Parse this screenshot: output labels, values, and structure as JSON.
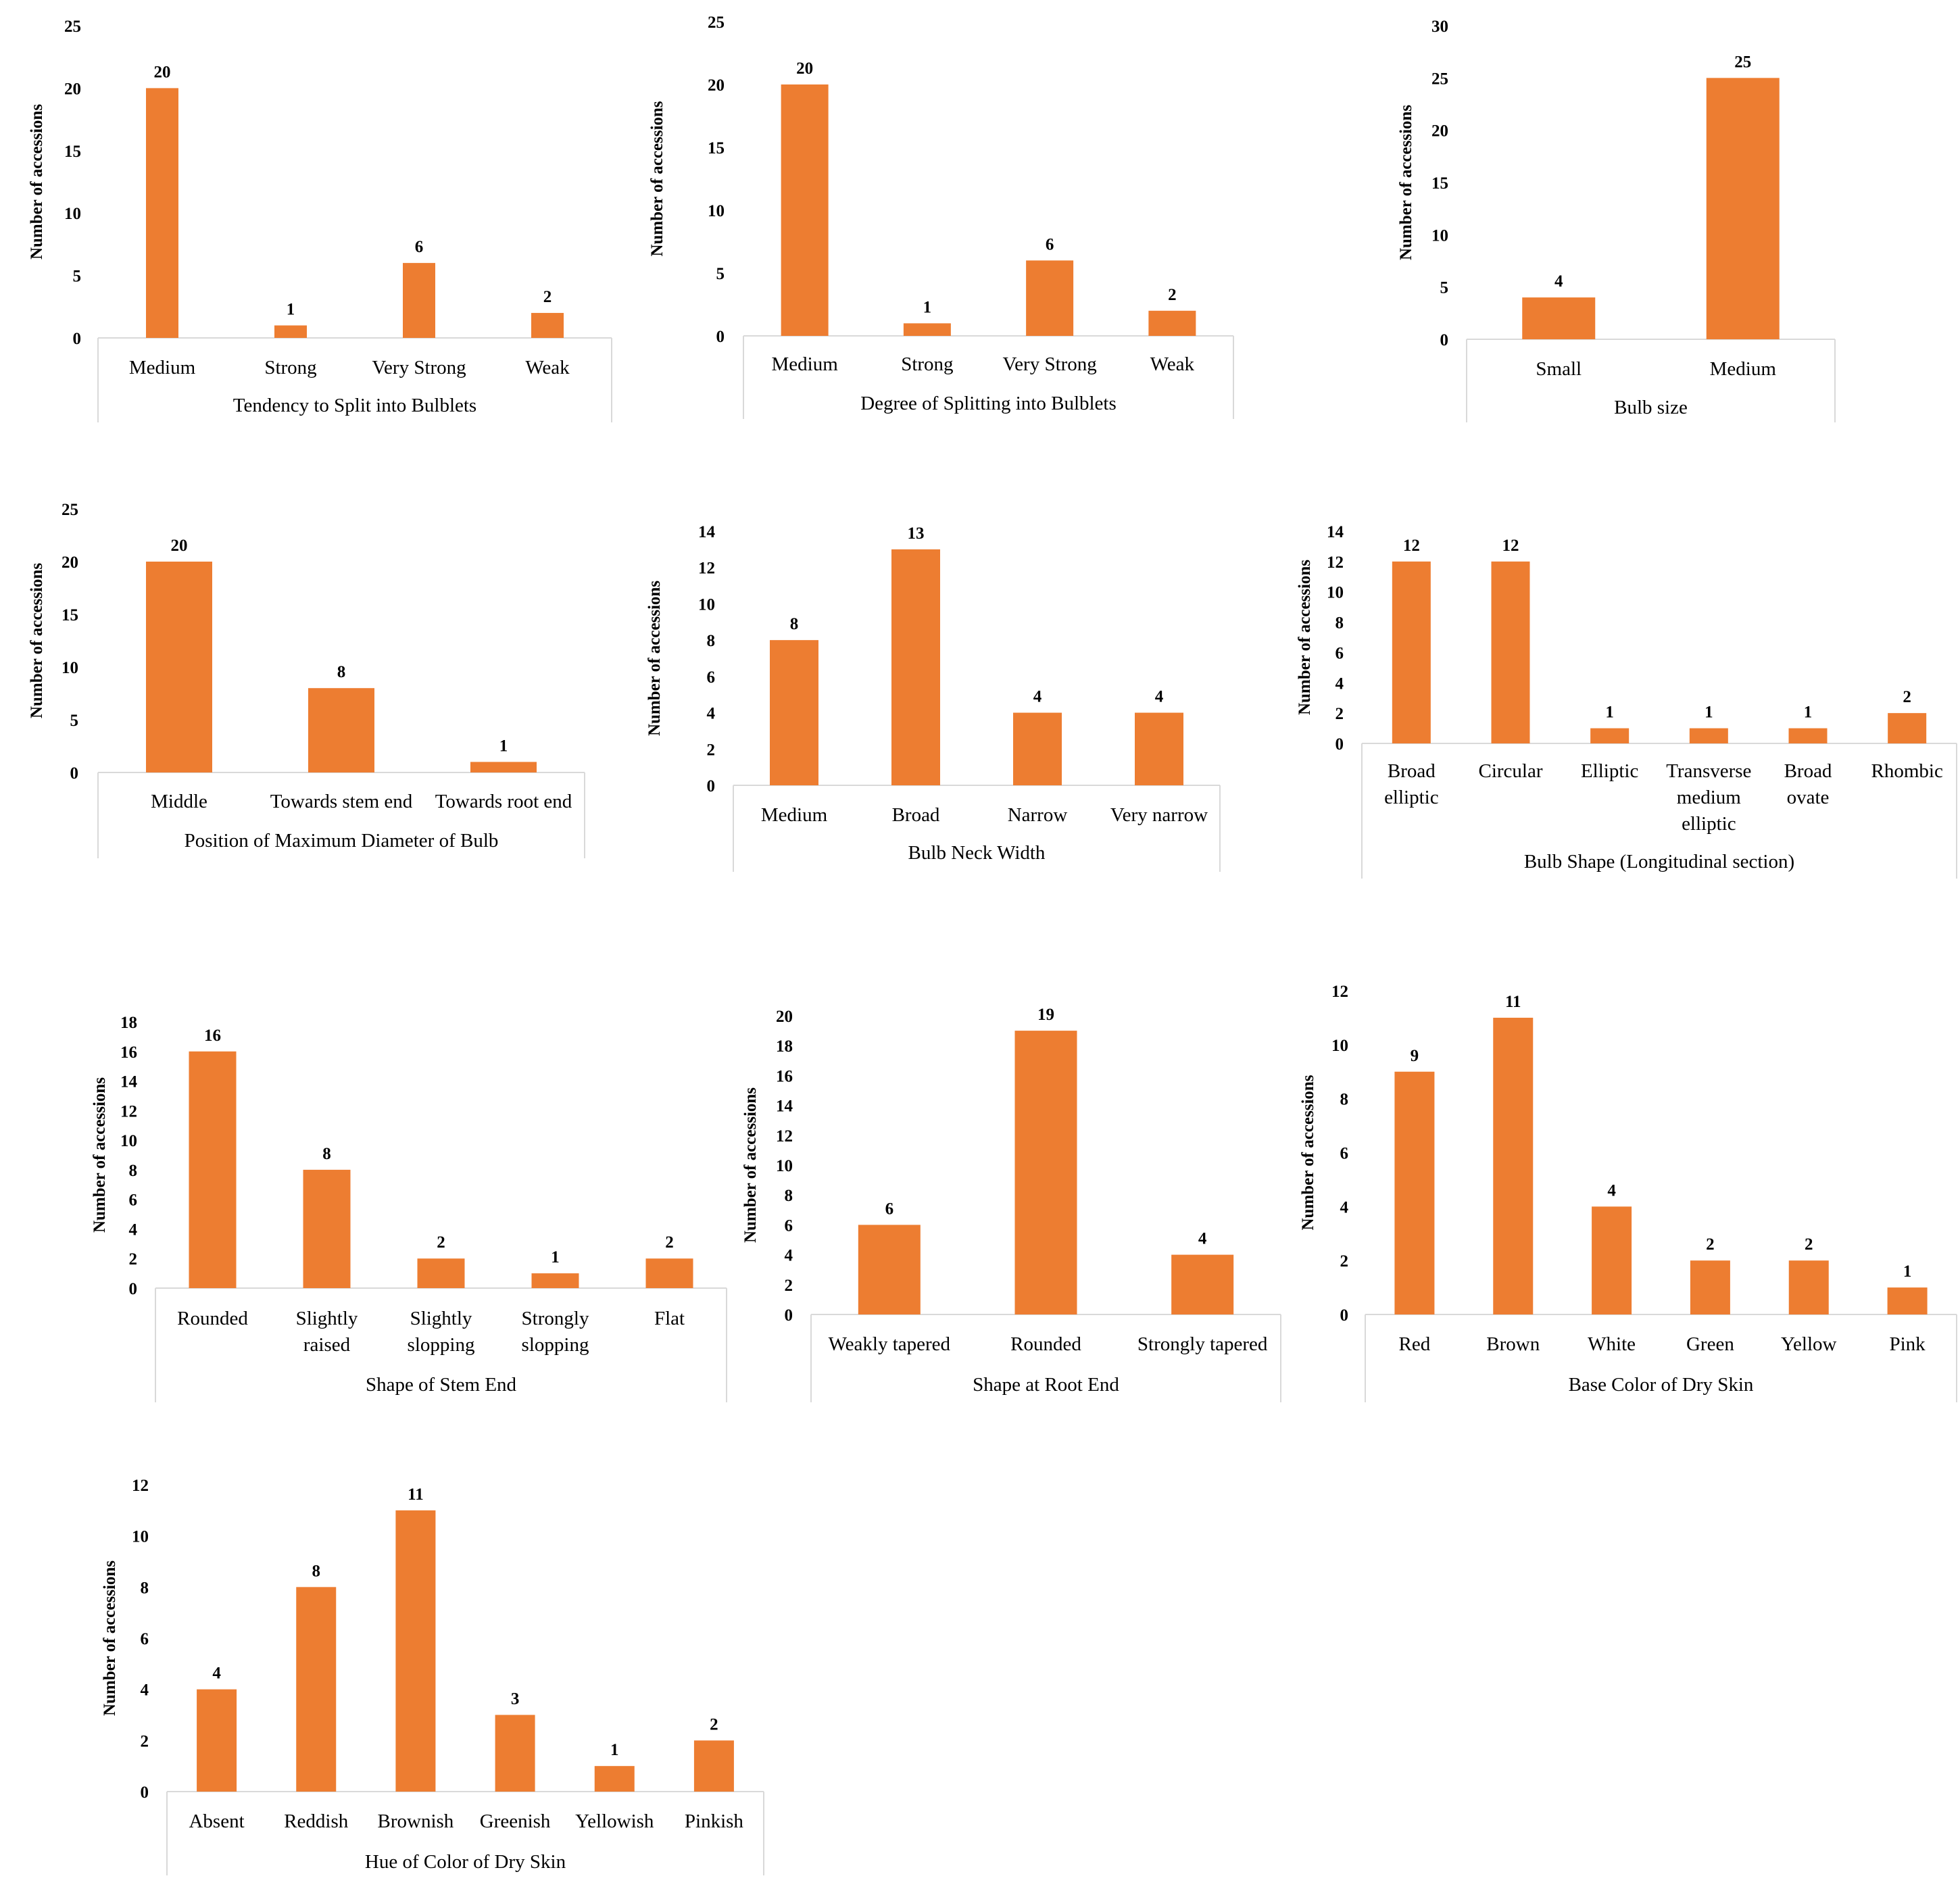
{
  "style": {
    "bar_color": "#ed7d31",
    "axis_color": "#d9d9d9",
    "text_color": "#000000"
  },
  "chart_data": [
    {
      "type": "bar",
      "categories": [
        [
          "Medium"
        ],
        [
          "Strong"
        ],
        [
          "Very Strong"
        ],
        [
          "Weak"
        ]
      ],
      "values": [
        20,
        1,
        6,
        2
      ],
      "xlabel": "Tendency to Split into Bulblets",
      "ylabel": "Number of accessions",
      "ylim": [
        0,
        25
      ],
      "yticks": [
        0,
        5,
        10,
        15,
        20,
        25
      ],
      "grid": false,
      "legend": "none"
    },
    {
      "type": "bar",
      "categories": [
        [
          "Medium"
        ],
        [
          "Strong"
        ],
        [
          "Very Strong"
        ],
        [
          "Weak"
        ]
      ],
      "values": [
        20,
        1,
        6,
        2
      ],
      "xlabel": "Degree of Splitting into Bulblets",
      "ylabel": "Number of accessions",
      "ylim": [
        0,
        25
      ],
      "yticks": [
        0,
        5,
        10,
        15,
        20,
        25
      ],
      "grid": false,
      "legend": "none"
    },
    {
      "type": "bar",
      "categories": [
        [
          "Small"
        ],
        [
          "Medium"
        ]
      ],
      "values": [
        4,
        25
      ],
      "xlabel": "Bulb size",
      "ylabel": "Number of accessions",
      "ylim": [
        0,
        30
      ],
      "yticks": [
        0,
        5,
        10,
        15,
        20,
        25,
        30
      ],
      "grid": false,
      "legend": "none"
    },
    {
      "type": "bar",
      "categories": [
        [
          "Middle"
        ],
        [
          "Towards stem end"
        ],
        [
          "Towards root end"
        ]
      ],
      "values": [
        20,
        8,
        1
      ],
      "xlabel": "Position of Maximum Diameter of Bulb",
      "ylabel": "Number of accessions",
      "ylim": [
        0,
        25
      ],
      "yticks": [
        0,
        5,
        10,
        15,
        20,
        25
      ],
      "grid": false,
      "legend": "none"
    },
    {
      "type": "bar",
      "categories": [
        [
          "Medium"
        ],
        [
          "Broad"
        ],
        [
          "Narrow"
        ],
        [
          "Very narrow"
        ]
      ],
      "values": [
        8,
        13,
        4,
        4
      ],
      "xlabel": "Bulb Neck Width",
      "ylabel": "Number of accessions",
      "ylim": [
        0,
        14
      ],
      "yticks": [
        0,
        2,
        4,
        6,
        8,
        10,
        12,
        14
      ],
      "grid": false,
      "legend": "none"
    },
    {
      "type": "bar",
      "categories": [
        [
          "Broad",
          "elliptic"
        ],
        [
          "Circular"
        ],
        [
          "Elliptic"
        ],
        [
          "Transverse",
          "medium",
          "elliptic"
        ],
        [
          "Broad",
          "ovate"
        ],
        [
          "Rhombic"
        ]
      ],
      "values": [
        12,
        12,
        1,
        1,
        1,
        2
      ],
      "xlabel": "Bulb Shape (Longitudinal section)",
      "ylabel": "Number of accessions",
      "ylim": [
        0,
        14
      ],
      "yticks": [
        0,
        2,
        4,
        6,
        8,
        10,
        12,
        14
      ],
      "grid": false,
      "legend": "none"
    },
    {
      "type": "bar",
      "categories": [
        [
          "Rounded"
        ],
        [
          "Slightly",
          "raised"
        ],
        [
          "Slightly",
          "slopping"
        ],
        [
          "Strongly",
          "slopping"
        ],
        [
          "Flat"
        ]
      ],
      "values": [
        16,
        8,
        2,
        1,
        2
      ],
      "xlabel": "Shape of Stem End",
      "ylabel": "Number of accessions",
      "ylim": [
        0,
        18
      ],
      "yticks": [
        0,
        2,
        4,
        6,
        8,
        10,
        12,
        14,
        16,
        18
      ],
      "grid": false,
      "legend": "none"
    },
    {
      "type": "bar",
      "categories": [
        [
          "Weakly tapered"
        ],
        [
          "Rounded"
        ],
        [
          "Strongly tapered"
        ]
      ],
      "values": [
        6,
        19,
        4
      ],
      "xlabel": "Shape at Root End",
      "ylabel": "Number of accessions",
      "ylim": [
        0,
        20
      ],
      "yticks": [
        0,
        2,
        4,
        6,
        8,
        10,
        12,
        14,
        16,
        18,
        20
      ],
      "grid": false,
      "legend": "none"
    },
    {
      "type": "bar",
      "categories": [
        [
          "Red"
        ],
        [
          "Brown"
        ],
        [
          "White"
        ],
        [
          "Green"
        ],
        [
          "Yellow"
        ],
        [
          "Pink"
        ]
      ],
      "values": [
        9,
        11,
        4,
        2,
        2,
        1
      ],
      "xlabel": "Base Color of Dry Skin",
      "ylabel": "Number of accessions",
      "ylim": [
        0,
        12
      ],
      "yticks": [
        0,
        2,
        4,
        6,
        8,
        10,
        12
      ],
      "grid": false,
      "legend": "none"
    },
    {
      "type": "bar",
      "categories": [
        [
          "Absent"
        ],
        [
          "Reddish"
        ],
        [
          "Brownish"
        ],
        [
          "Greenish"
        ],
        [
          "Yellowish"
        ],
        [
          "Pinkish"
        ]
      ],
      "values": [
        4,
        8,
        11,
        3,
        1,
        2
      ],
      "xlabel": "Hue of Color of Dry Skin",
      "ylabel": "Number of accessions",
      "ylim": [
        0,
        12
      ],
      "yticks": [
        0,
        2,
        4,
        6,
        8,
        10,
        12
      ],
      "grid": false,
      "legend": "none"
    }
  ]
}
